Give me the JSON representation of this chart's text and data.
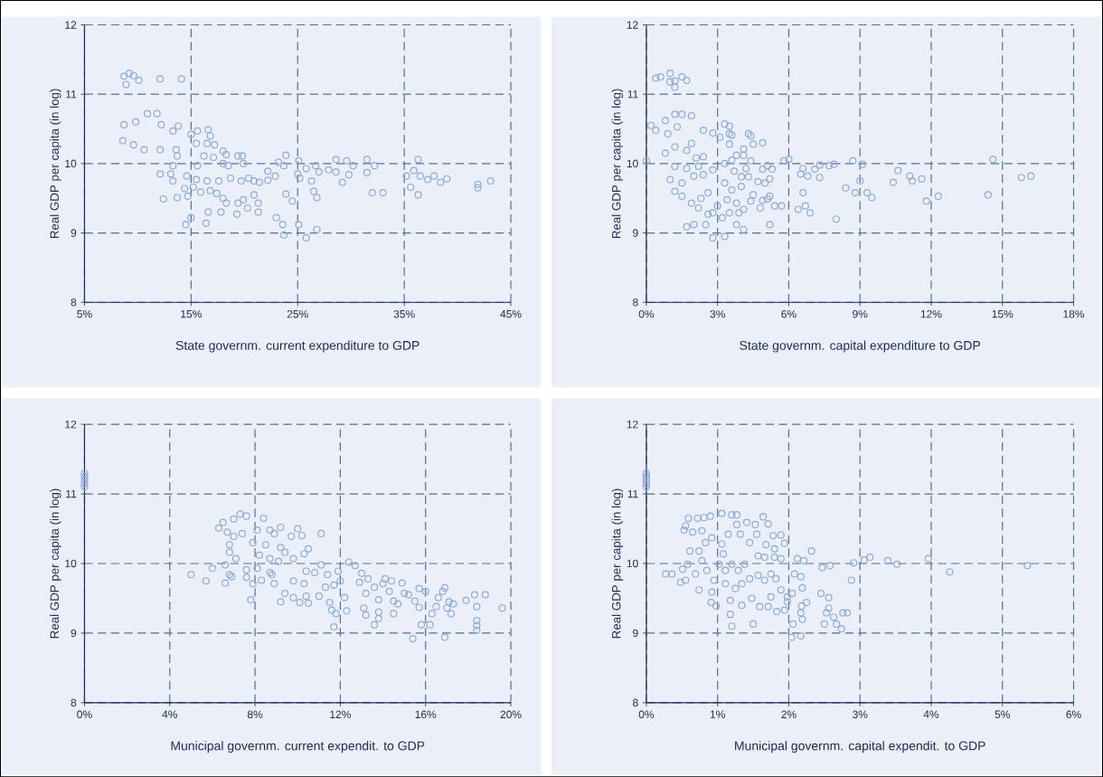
{
  "chart_data": [
    {
      "type": "scatter",
      "xlabel": "State governm. current expenditure to GDP",
      "ylabel": "Real GDP per capita (in log)",
      "color": "#8faadc",
      "marker": "circle",
      "grid": true,
      "xlim": [
        5,
        45
      ],
      "xticks": [
        {
          "value": 5,
          "label": "5%"
        },
        {
          "value": 15,
          "label": "15%"
        },
        {
          "value": 25,
          "label": "25%"
        },
        {
          "value": 35,
          "label": "35%"
        },
        {
          "value": 45,
          "label": "45%"
        }
      ],
      "ylim": [
        8,
        12
      ],
      "yticks": [
        8,
        9,
        10,
        11,
        12
      ],
      "x": [
        8.7,
        9.2,
        9.6,
        10.1,
        8.9,
        12.1,
        14.1,
        8.6,
        8.7,
        9.8,
        10.9,
        11.8,
        12.2,
        9.6,
        10.6,
        12.1,
        13.3,
        13.8,
        13.6,
        13.3,
        13.7,
        15.0,
        15.6,
        16.6,
        16.8,
        15.5,
        16.5,
        17.2,
        18.0,
        18.3,
        16.2,
        17.1,
        19.4,
        19.8,
        18.0,
        15.6,
        18.5,
        19.9,
        12.1,
        13.1,
        13.3,
        14.6,
        15.5,
        16.5,
        17.6,
        18.7,
        19.7,
        20.4,
        20.9,
        21.4,
        14.4,
        15.2,
        15.9,
        16.8,
        17.4,
        18.0,
        18.3,
        19.4,
        19.9,
        20.9,
        21.3,
        21.3,
        19.3,
        16.6,
        17.8,
        12.4,
        13.7,
        14.7,
        15.0,
        14.5,
        16.4,
        20.3,
        22.2,
        22.9,
        22.2,
        23.2,
        23.9,
        23.7,
        25.1,
        25.0,
        25.2,
        26.3,
        25.8,
        26.7,
        27.0,
        27.9,
        28.6,
        28.6,
        29.2,
        29.6,
        29.8,
        30.2,
        31.5,
        31.5,
        32.2,
        23.9,
        24.5,
        26.5,
        26.8,
        23.0,
        23.6,
        23.7,
        25.1,
        25.8,
        26.8,
        32.0,
        33.0,
        35.2,
        35.9,
        36.3,
        36.5,
        35.6,
        36.3,
        37.2,
        37.8,
        38.4,
        39.0,
        41.9,
        41.9,
        43.1
      ],
      "values": [
        11.26,
        11.3,
        11.27,
        11.2,
        11.14,
        11.22,
        11.22,
        10.33,
        10.56,
        10.6,
        10.72,
        10.72,
        10.56,
        10.27,
        10.2,
        10.2,
        10.47,
        10.54,
        10.2,
        9.97,
        10.11,
        10.42,
        10.47,
        10.49,
        10.4,
        10.29,
        10.29,
        10.27,
        10.18,
        10.13,
        10.11,
        10.09,
        10.11,
        10.11,
        10.0,
        9.97,
        9.97,
        10.0,
        9.85,
        9.85,
        9.75,
        9.82,
        9.77,
        9.75,
        9.75,
        9.79,
        9.75,
        9.79,
        9.75,
        9.73,
        9.64,
        9.66,
        9.59,
        9.61,
        9.57,
        9.5,
        9.43,
        9.43,
        9.48,
        9.55,
        9.43,
        9.3,
        9.27,
        9.3,
        9.3,
        9.49,
        9.51,
        9.53,
        9.22,
        9.12,
        9.14,
        9.36,
        9.89,
        9.82,
        9.76,
        10.02,
        10.12,
        9.97,
        10.04,
        9.85,
        9.79,
        9.75,
        9.93,
        9.97,
        9.88,
        9.91,
        10.06,
        9.88,
        9.73,
        10.04,
        9.84,
        9.97,
        10.06,
        9.87,
        9.97,
        9.56,
        9.46,
        9.6,
        9.51,
        9.22,
        9.12,
        8.97,
        9.12,
        8.93,
        9.05,
        9.58,
        9.58,
        9.82,
        9.9,
        10.06,
        9.82,
        9.66,
        9.55,
        9.77,
        9.82,
        9.73,
        9.78,
        9.7,
        9.65,
        9.75
      ]
    },
    {
      "type": "scatter",
      "xlabel": "State governm. capital expenditure to GDP",
      "ylabel": "Real GDP per capita (in log)",
      "color": "#8faadc",
      "marker": "circle",
      "grid": true,
      "xlim": [
        0,
        18
      ],
      "xticks": [
        {
          "value": 0,
          "label": "0%"
        },
        {
          "value": 3,
          "label": "3%"
        },
        {
          "value": 6,
          "label": "6%"
        },
        {
          "value": 9,
          "label": "9%"
        },
        {
          "value": 12,
          "label": "12%"
        },
        {
          "value": 15,
          "label": "15%"
        },
        {
          "value": 18,
          "label": "18%"
        }
      ],
      "ylim": [
        8,
        12
      ],
      "yticks": [
        8,
        9,
        10,
        11,
        12
      ],
      "x": [
        0.0,
        0.4,
        0.6,
        1.0,
        1.2,
        1.2,
        1.5,
        1.7,
        1.0,
        0.2,
        0.4,
        0.8,
        1.2,
        1.5,
        1.9,
        0.9,
        1.3,
        0.8,
        1.2,
        1.7,
        1.9,
        2.4,
        2.8,
        2.1,
        2.4,
        1.2,
        1.7,
        2.2,
        1.0,
        1.5,
        2.0,
        2.4,
        2.8,
        1.2,
        1.5,
        1.9,
        2.3,
        2.6,
        2.2,
        2.6,
        2.8,
        3.0,
        3.2,
        1.7,
        2.0,
        2.5,
        2.8,
        3.3,
        3.3,
        3.5,
        3.5,
        3.6,
        3.1,
        3.5,
        4.3,
        4.4,
        4.5,
        4.9,
        4.1,
        3.8,
        4.1,
        4.4,
        3.3,
        3.6,
        3.7,
        4.2,
        4.0,
        4.3,
        4.9,
        5.1,
        5.3,
        3.3,
        3.6,
        4.0,
        4.5,
        4.7,
        5.0,
        5.2,
        5.2,
        3.4,
        3.8,
        4.4,
        4.9,
        5.1,
        3.5,
        3.9,
        4.1,
        4.8,
        5.4,
        5.7,
        3.8,
        4.1,
        5.2,
        5.8,
        6.0,
        6.6,
        6.5,
        6.8,
        6.6,
        6.4,
        6.7,
        6.9,
        7.1,
        7.3,
        7.3,
        7.7,
        7.9,
        8.0,
        8.4,
        8.7,
        8.8,
        9.0,
        9.1,
        9.3,
        9.5,
        10.4,
        10.6,
        11.1,
        11.2,
        11.6,
        11.8,
        12.3,
        14.4,
        14.6,
        15.8,
        16.2
      ],
      "values": [
        10.04,
        11.23,
        11.25,
        11.3,
        11.19,
        11.1,
        11.25,
        11.2,
        11.18,
        10.55,
        10.48,
        10.62,
        10.71,
        10.71,
        10.69,
        10.43,
        10.53,
        10.15,
        10.24,
        10.19,
        10.29,
        10.48,
        10.44,
        10.08,
        10.1,
        9.96,
        9.93,
        9.96,
        9.77,
        9.72,
        9.82,
        9.84,
        9.91,
        9.6,
        9.53,
        9.43,
        9.5,
        9.58,
        9.36,
        9.27,
        9.29,
        9.39,
        9.22,
        9.09,
        9.12,
        9.12,
        8.93,
        8.95,
        10.57,
        10.54,
        10.43,
        10.41,
        10.38,
        10.28,
        10.43,
        10.4,
        10.28,
        10.3,
        10.21,
        10.12,
        10.12,
        10.04,
        10.0,
        10.05,
        9.89,
        9.93,
        9.81,
        9.81,
        9.92,
        9.97,
        9.92,
        9.72,
        9.62,
        9.67,
        9.55,
        9.74,
        9.72,
        9.78,
        9.53,
        9.48,
        9.43,
        9.46,
        9.47,
        9.49,
        9.29,
        9.29,
        9.34,
        9.36,
        9.39,
        9.39,
        9.12,
        9.05,
        9.12,
        10.04,
        10.06,
        9.93,
        9.85,
        9.82,
        9.58,
        9.34,
        9.39,
        9.29,
        9.92,
        9.98,
        9.8,
        9.97,
        9.99,
        9.2,
        9.65,
        10.04,
        9.58,
        9.75,
        9.99,
        9.58,
        9.51,
        9.73,
        9.9,
        9.82,
        9.75,
        9.78,
        9.46,
        9.53,
        9.55,
        10.06,
        9.8,
        9.82
      ]
    },
    {
      "type": "scatter",
      "xlabel": "Municipal governm. current expendit. to GDP",
      "ylabel": "Real GDP per capita (in log)",
      "color": "#8faadc",
      "marker": "circle",
      "grid": true,
      "xlim": [
        0,
        20
      ],
      "xticks": [
        {
          "value": 0,
          "label": "0%"
        },
        {
          "value": 4,
          "label": "4%"
        },
        {
          "value": 8,
          "label": "8%"
        },
        {
          "value": 12,
          "label": "12%"
        },
        {
          "value": 16,
          "label": "16%"
        },
        {
          "value": 20,
          "label": "20%"
        }
      ],
      "ylim": [
        8,
        12
      ],
      "yticks": [
        8,
        9,
        10,
        11,
        12
      ],
      "x": [
        0,
        0,
        0,
        0,
        0,
        5.0,
        5.7,
        6.0,
        6.6,
        6.6,
        6.8,
        6.9,
        6.3,
        6.5,
        6.7,
        7.0,
        7.3,
        7.6,
        6.8,
        6.8,
        7.1,
        7.0,
        7.4,
        7.6,
        7.6,
        7.9,
        7.8,
        7.9,
        8.1,
        8.4,
        8.7,
        8.9,
        9.2,
        8.5,
        8.2,
        8.1,
        8.7,
        9.1,
        9.4,
        9.2,
        9.7,
        10.0,
        10.2,
        9.8,
        10.3,
        10.5,
        8.8,
        8.9,
        9.4,
        9.2,
        8.7,
        8.3,
        9.8,
        9.8,
        10.1,
        10.4,
        10.5,
        10.4,
        10.8,
        10.3,
        11.1,
        11.1,
        11.4,
        11.3,
        11.0,
        11.5,
        11.6,
        11.8,
        11.7,
        11.7,
        11.9,
        12.0,
        12.2,
        12.3,
        12.4,
        12.7,
        13.0,
        12.9,
        13.3,
        13.2,
        13.1,
        13.2,
        13.6,
        13.8,
        13.8,
        13.6,
        13.8,
        14.0,
        14.1,
        14.4,
        14.3,
        14.5,
        14.5,
        14.9,
        15.0,
        14.7,
        15.2,
        15.5,
        15.7,
        15.7,
        15.8,
        15.4,
        16.0,
        16.2,
        16.3,
        16.5,
        16.6,
        16.9,
        16.8,
        17.1,
        17.3,
        17.2,
        16.9,
        17.0,
        17.9,
        18.3,
        18.4,
        18.4,
        18.4,
        18.4,
        18.8,
        19.6
      ],
      "values": [
        11.3,
        11.25,
        11.2,
        11.15,
        11.1,
        9.84,
        9.75,
        9.93,
        9.98,
        9.72,
        9.84,
        9.81,
        10.51,
        10.59,
        10.45,
        10.64,
        10.71,
        10.68,
        10.27,
        10.16,
        10.07,
        10.39,
        10.43,
        9.91,
        9.8,
        9.71,
        9.48,
        10.3,
        10.48,
        10.65,
        10.48,
        10.43,
        10.52,
        10.27,
        10.12,
        9.93,
        10.07,
        10.03,
        10.16,
        10.23,
        10.39,
        10.5,
        10.4,
        10.07,
        10.14,
        10.21,
        9.84,
        9.71,
        9.57,
        9.45,
        9.87,
        9.76,
        9.75,
        9.51,
        9.44,
        9.53,
        9.43,
        9.89,
        9.87,
        9.71,
        10.43,
        9.98,
        9.84,
        9.66,
        9.53,
        9.44,
        9.33,
        9.28,
        9.09,
        9.69,
        9.89,
        9.75,
        9.51,
        9.32,
        10.02,
        9.97,
        9.86,
        9.73,
        9.78,
        9.57,
        9.36,
        9.26,
        9.12,
        9.21,
        9.3,
        9.66,
        9.48,
        9.71,
        9.78,
        9.75,
        9.6,
        9.46,
        9.28,
        9.72,
        9.57,
        9.42,
        9.55,
        9.46,
        9.64,
        9.37,
        9.12,
        8.92,
        9.6,
        9.12,
        9.28,
        9.38,
        9.51,
        9.65,
        9.6,
        9.45,
        9.42,
        9.28,
        8.94,
        9.36,
        9.47,
        9.55,
        9.38,
        9.18,
        9.11,
        9.04,
        9.55,
        9.36
      ]
    },
    {
      "type": "scatter",
      "xlabel": "Municipal governm. capital expendit. to GDP",
      "ylabel": "Real GDP per capita (in log)",
      "color": "#8faadc",
      "marker": "circle",
      "grid": true,
      "xlim": [
        0,
        6
      ],
      "xticks": [
        {
          "value": 0,
          "label": "0%"
        },
        {
          "value": 1,
          "label": "1%"
        },
        {
          "value": 2,
          "label": "2%"
        },
        {
          "value": 3,
          "label": "3%"
        },
        {
          "value": 4,
          "label": "4%"
        },
        {
          "value": 5,
          "label": "5%"
        },
        {
          "value": 6,
          "label": "6%"
        }
      ],
      "ylim": [
        8,
        12
      ],
      "yticks": [
        8,
        9,
        10,
        11,
        12
      ],
      "x": [
        0,
        0,
        0,
        0,
        0,
        0.27,
        0.36,
        0.48,
        0.55,
        0.51,
        0.58,
        0.61,
        0.74,
        0.69,
        0.53,
        0.59,
        0.55,
        0.72,
        0.81,
        0.9,
        1.06,
        1.2,
        1.27,
        0.65,
        0.78,
        0.74,
        0.83,
        0.92,
        0.78,
        0.85,
        0.95,
        0.92,
        0.91,
        0.98,
        1.02,
        1.08,
        1.06,
        1.15,
        1.27,
        1.32,
        1.41,
        1.53,
        1.64,
        1.71,
        1.55,
        1.45,
        1.57,
        1.66,
        1.78,
        1.89,
        1.94,
        1.68,
        1.8,
        1.8,
        1.89,
        1.11,
        1.2,
        1.29,
        1.38,
        1.11,
        1.25,
        1.34,
        1.45,
        1.57,
        1.66,
        1.75,
        1.82,
        1.18,
        1.18,
        1.2,
        1.34,
        1.5,
        1.48,
        1.59,
        1.71,
        1.75,
        1.83,
        1.89,
        1.94,
        1.98,
        1.98,
        2.05,
        2.08,
        2.12,
        2.21,
        2.17,
        2.19,
        2.25,
        2.18,
        2.17,
        2.19,
        2.06,
        2.04,
        2.17,
        2.32,
        2.45,
        2.47,
        2.58,
        2.56,
        2.56,
        2.53,
        2.5,
        2.63,
        2.67,
        2.74,
        2.76,
        2.82,
        2.88,
        2.91,
        3.06,
        3.14,
        3.39,
        3.52,
        3.96,
        4.26,
        5.35
      ],
      "values": [
        11.3,
        11.25,
        11.2,
        11.15,
        11.1,
        9.85,
        9.85,
        9.73,
        9.76,
        9.92,
        9.99,
        10.18,
        9.62,
        9.85,
        10.48,
        10.65,
        10.54,
        10.65,
        10.66,
        10.68,
        10.72,
        10.7,
        10.7,
        10.45,
        10.47,
        10.18,
        10.3,
        10.37,
        10.04,
        9.9,
        9.76,
        9.59,
        9.44,
        9.39,
        9.99,
        10.14,
        10.28,
        10.42,
        10.56,
        10.42,
        10.59,
        10.56,
        10.67,
        10.57,
        10.42,
        10.3,
        10.11,
        10.09,
        10.4,
        10.41,
        10.29,
        10.27,
        10.21,
        10.09,
        10.07,
        9.9,
        9.99,
        9.9,
        9.99,
        9.71,
        9.64,
        9.71,
        9.78,
        9.83,
        9.76,
        9.85,
        9.78,
        9.47,
        9.27,
        9.1,
        9.4,
        9.13,
        9.5,
        9.38,
        9.38,
        9.52,
        9.31,
        9.62,
        9.33,
        9.45,
        9.52,
        9.57,
        9.85,
        10.07,
        10.04,
        9.81,
        9.65,
        9.44,
        9.39,
        9.29,
        9.2,
        9.13,
        8.94,
        8.96,
        10.18,
        9.57,
        9.94,
        9.97,
        9.51,
        9.36,
        9.29,
        9.13,
        9.23,
        9.13,
        9.06,
        9.29,
        9.29,
        9.76,
        10.01,
        10.05,
        10.09,
        10.04,
        9.99,
        10.07,
        9.88,
        9.97
      ]
    }
  ]
}
